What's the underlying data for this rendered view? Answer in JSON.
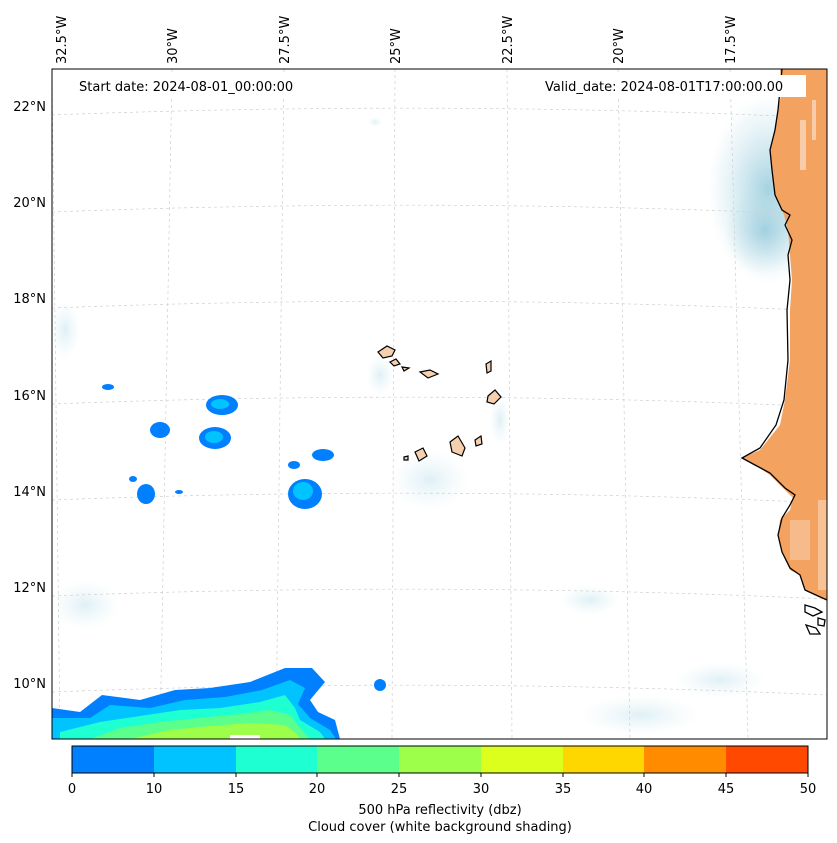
{
  "header": {
    "start_date": "Start date: 2024-08-01_00:00:00",
    "valid_date": "Valid_date: 2024-08-01T17:00:00.00"
  },
  "map": {
    "lon_labels": [
      "32.5°W",
      "30°W",
      "27.5°W",
      "25°W",
      "22.5°W",
      "20°W",
      "17.5°W"
    ],
    "lat_labels": [
      "22°N",
      "20°N",
      "18°N",
      "16°N",
      "14°N",
      "12°N",
      "10°N"
    ],
    "land_color": "#f4a260",
    "cloud_color": "#a9d3e0",
    "reflectivity_colors": [
      "#0080ff",
      "#00c3ff",
      "#1effd2",
      "#5aff8c",
      "#9eff4a",
      "#dcff1e",
      "#ffd700",
      "#ff8c00",
      "#ff4800"
    ]
  },
  "colorbar": {
    "ticks": [
      "0",
      "10",
      "15",
      "20",
      "25",
      "30",
      "35",
      "40",
      "45",
      "50"
    ],
    "label_line1": "500 hPa reflectivity (dbz)",
    "label_line2": "Cloud cover (white background shading)"
  }
}
